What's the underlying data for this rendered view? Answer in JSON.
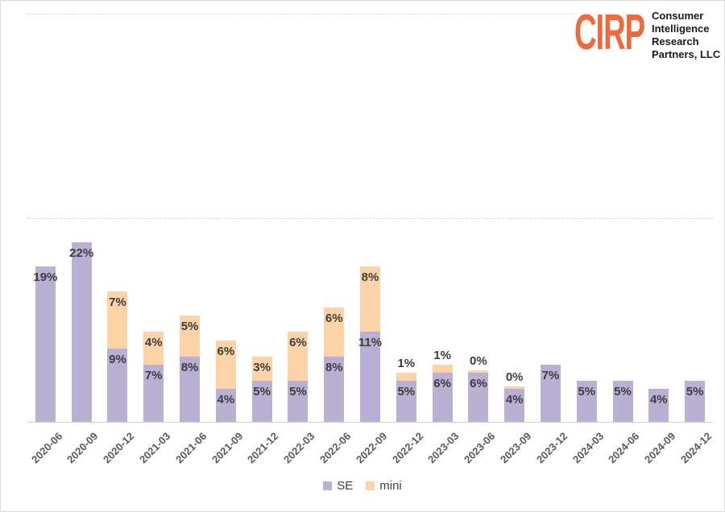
{
  "page": {
    "background": "#ffffff",
    "border_color": "#d9d9d9"
  },
  "logo": {
    "brand": "CIRP",
    "brand_color": "#ee6a3c",
    "tagline_lines": [
      "Consumer",
      "Intelligence",
      "Research",
      "Partners, LLC"
    ]
  },
  "legend": {
    "items": [
      {
        "label": "SE",
        "color": "#b9b0d3"
      },
      {
        "label": "mini",
        "color": "#fbd3a6"
      }
    ]
  },
  "chart_data": {
    "type": "bar",
    "stacked": true,
    "categories": [
      "2020-06",
      "2020-09",
      "2020-12",
      "2021-03",
      "2021-06",
      "2021-09",
      "2021-12",
      "2022-03",
      "2022-06",
      "2022-09",
      "2022-12",
      "2023-03",
      "2023-06",
      "2023-09",
      "2023-12",
      "2024-03",
      "2024-06",
      "2024-09",
      "2024-12"
    ],
    "series": [
      {
        "name": "SE",
        "color": "#b9b0d3",
        "values": [
          19,
          22,
          9,
          7,
          8,
          4,
          5,
          5,
          8,
          11,
          5,
          6,
          6,
          4,
          7,
          5,
          5,
          4,
          5
        ]
      },
      {
        "name": "mini",
        "color": "#fbd3a6",
        "values": [
          null,
          null,
          7,
          4,
          5,
          6,
          3,
          6,
          6,
          8,
          1,
          1,
          0,
          0,
          null,
          null,
          null,
          null,
          null
        ]
      }
    ],
    "point_labels": {
      "SE": [
        "19%",
        "22%",
        "9%",
        "7%",
        "8%",
        "4%",
        "5%",
        "5%",
        "8%",
        "11%",
        "5%",
        "6%",
        "6%",
        "4%",
        "7%",
        "5%",
        "5%",
        "4%",
        "5%"
      ],
      "mini": [
        null,
        null,
        "7%",
        "4%",
        "5%",
        "6%",
        "3%",
        "6%",
        "6%",
        "8%",
        "1%",
        "1%",
        "0%",
        "0%",
        null,
        null,
        null,
        null,
        null
      ]
    },
    "ylim": [
      0,
      52
    ],
    "gridlines_pct": [
      25,
      50
    ],
    "grid_style": "dashed",
    "xlabel": "",
    "ylabel": "",
    "legend_position": "bottom"
  }
}
